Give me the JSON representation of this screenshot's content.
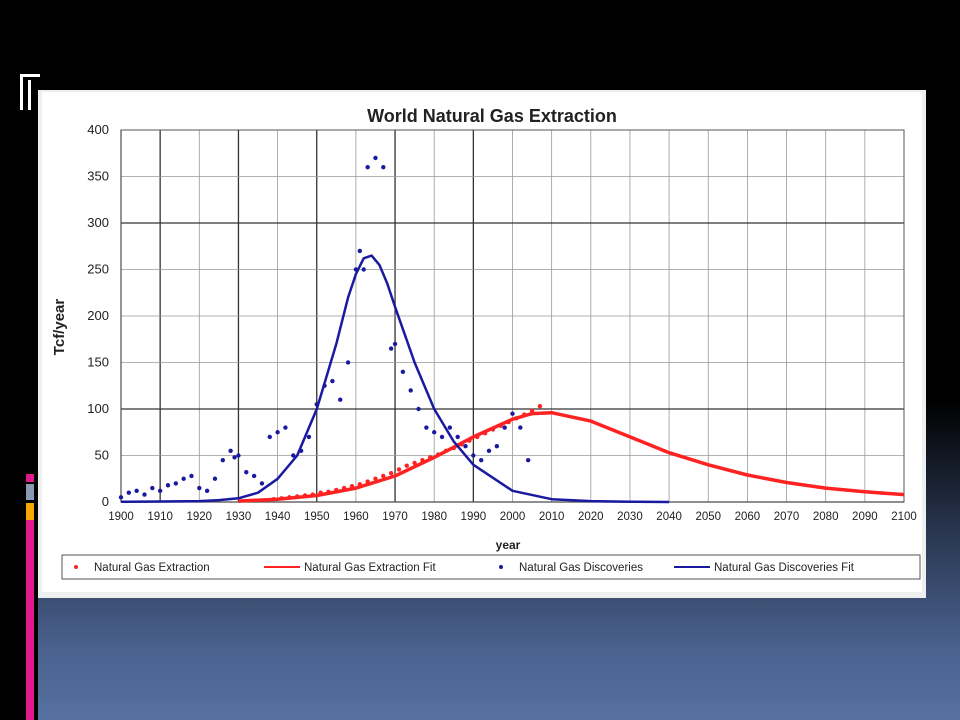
{
  "chart_data": {
    "type": "line",
    "title": "World Natural Gas Extraction",
    "xlabel": "year",
    "ylabel": "Tcf/year",
    "xlim": [
      1900,
      2100
    ],
    "ylim": [
      0,
      400
    ],
    "xticks": [
      "1900",
      "1910",
      "1920",
      "1930",
      "1940",
      "1950",
      "1960",
      "1970",
      "1980",
      "1990",
      "2000",
      "2010",
      "2020",
      "2030",
      "2040",
      "2050",
      "2060",
      "2070",
      "2080",
      "2090",
      "2100"
    ],
    "yticks": [
      "0",
      "50",
      "100",
      "150",
      "200",
      "250",
      "300",
      "350",
      "400"
    ],
    "grid": true,
    "legend_position": "bottom",
    "colors": {
      "extraction": "#ff2222",
      "discoveries": "#1a1aa0"
    },
    "series": [
      {
        "name": "Natural Gas Extraction",
        "kind": "scatter",
        "x": [
          1937,
          1939,
          1941,
          1943,
          1945,
          1947,
          1949,
          1951,
          1953,
          1955,
          1957,
          1959,
          1961,
          1963,
          1965,
          1967,
          1969,
          1971,
          1973,
          1975,
          1977,
          1979,
          1981,
          1983,
          1985,
          1987,
          1989,
          1991,
          1993,
          1995,
          1997,
          1999,
          2001,
          2003,
          2005,
          2007
        ],
        "y": [
          2,
          3,
          4,
          5,
          6,
          7,
          8,
          10,
          11,
          13,
          15,
          17,
          19,
          22,
          25,
          28,
          31,
          35,
          39,
          42,
          45,
          48,
          51,
          55,
          58,
          62,
          66,
          70,
          74,
          78,
          82,
          86,
          90,
          94,
          98,
          103
        ]
      },
      {
        "name": "Natural Gas Extraction Fit",
        "kind": "line",
        "x": [
          1930,
          1940,
          1950,
          1960,
          1970,
          1980,
          1990,
          2000,
          2005,
          2010,
          2020,
          2030,
          2040,
          2050,
          2060,
          2070,
          2080,
          2090,
          2100
        ],
        "y": [
          1,
          3,
          7,
          15,
          28,
          48,
          70,
          89,
          95,
          96,
          87,
          70,
          53,
          40,
          29,
          21,
          15,
          11,
          8
        ]
      },
      {
        "name": "Natural Gas Discoveries",
        "kind": "scatter",
        "x": [
          1900,
          1902,
          1904,
          1906,
          1908,
          1910,
          1912,
          1914,
          1916,
          1918,
          1920,
          1922,
          1924,
          1926,
          1928,
          1929,
          1930,
          1932,
          1934,
          1936,
          1938,
          1940,
          1942,
          1944,
          1946,
          1948,
          1950,
          1952,
          1954,
          1956,
          1958,
          1960,
          1961,
          1962,
          1963,
          1965,
          1967,
          1969,
          1970,
          1972,
          1974,
          1976,
          1978,
          1980,
          1982,
          1984,
          1986,
          1988,
          1990,
          1992,
          1994,
          1996,
          1998,
          2000,
          2002,
          2004
        ],
        "y": [
          5,
          10,
          12,
          8,
          15,
          12,
          18,
          20,
          25,
          28,
          15,
          12,
          25,
          45,
          55,
          48,
          50,
          32,
          28,
          20,
          70,
          75,
          80,
          50,
          55,
          70,
          105,
          125,
          130,
          110,
          150,
          250,
          270,
          250,
          360,
          370,
          360,
          165,
          170,
          140,
          120,
          100,
          80,
          75,
          70,
          80,
          70,
          60,
          50,
          45,
          55,
          60,
          80,
          95,
          80,
          45
        ]
      },
      {
        "name": "Natural Gas Discoveries Fit",
        "kind": "line",
        "x": [
          1900,
          1910,
          1920,
          1925,
          1930,
          1935,
          1940,
          1945,
          1950,
          1955,
          1958,
          1960,
          1962,
          1964,
          1966,
          1968,
          1970,
          1975,
          1980,
          1985,
          1990,
          2000,
          2010,
          2020,
          2030,
          2040
        ],
        "y": [
          0.2,
          0.5,
          1,
          2,
          4,
          10,
          25,
          50,
          100,
          170,
          220,
          245,
          262,
          265,
          255,
          235,
          210,
          150,
          100,
          65,
          40,
          12,
          3,
          1,
          0.3,
          0
        ]
      }
    ]
  }
}
